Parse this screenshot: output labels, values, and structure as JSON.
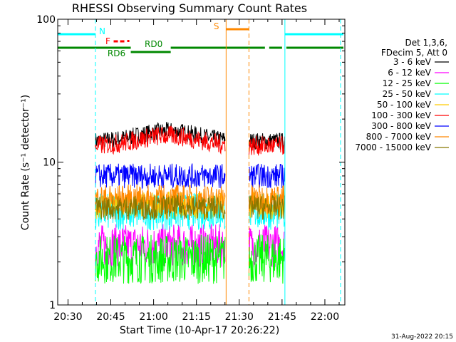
{
  "chart_data": {
    "type": "line",
    "title": "RHESSI Observing Summary Count Rates",
    "xlabel": "Start Time (10-Apr-17 20:26:22)",
    "ylabel": "Count Rate (s⁻¹ detector⁻¹)",
    "x_ticks": [
      "20:30",
      "20:45",
      "21:00",
      "21:15",
      "21:30",
      "21:45",
      "22:00"
    ],
    "x_tick_minutes": [
      30,
      45,
      60,
      75,
      90,
      105,
      120
    ],
    "xlim_minutes": [
      26.4,
      127
    ],
    "y_scale": "log",
    "ylim": [
      1,
      100
    ],
    "y_ticks": [
      "1",
      "10",
      "100"
    ],
    "y_tick_values": [
      1,
      10,
      100
    ],
    "legend_header": [
      "Det 1,3,6,",
      "FDecim 5, Att 0"
    ],
    "data_gap_minutes": [
      [
        85.2,
        93.4
      ]
    ],
    "observation_windows_minutes": [
      [
        39.6,
        85.2
      ],
      [
        93.4,
        106
      ]
    ],
    "series": [
      {
        "name": "3 - 6 keV",
        "color": "#000000",
        "level": 14,
        "noise": 0.14
      },
      {
        "name": "6 - 12 keV",
        "color": "#ff00ff",
        "level": 2.6,
        "noise": 0.35
      },
      {
        "name": "12 - 25 keV",
        "color": "#00ff00",
        "level": 2.1,
        "noise": 0.4
      },
      {
        "name": "25 - 50 keV",
        "color": "#00ffff",
        "level": 4.5,
        "noise": 0.3
      },
      {
        "name": "50 - 100 keV",
        "color": "#ffcc00",
        "level": 5.0,
        "noise": 0.22
      },
      {
        "name": "100 - 300 keV",
        "color": "#ff0000",
        "level": 13,
        "noise": 0.16
      },
      {
        "name": "300 - 800 keV",
        "color": "#0000ff",
        "level": 8,
        "noise": 0.2
      },
      {
        "name": "800 - 7000 keV",
        "color": "#ff8800",
        "level": 5.5,
        "noise": 0.24
      },
      {
        "name": "7000 - 15000 keV",
        "color": "#887700",
        "level": 4.8,
        "noise": 0.2
      }
    ],
    "flags": [
      {
        "label": "N",
        "color": "#00ffff",
        "start": 26.4,
        "end": 39.6
      },
      {
        "label": "",
        "color": "#00ffff",
        "start": 106,
        "end": 126.5
      },
      {
        "label": "F",
        "color": "#ff0000",
        "start": 46,
        "end": 51
      },
      {
        "label": "S",
        "color": "#ff8800",
        "start": 85.4,
        "end": 93.4
      },
      {
        "label": "RD0",
        "color": "#008800",
        "start": 26.4,
        "end": 126.5
      },
      {
        "label": "RD6",
        "color": "#008800",
        "start": 52,
        "end": 66
      }
    ],
    "vlines": [
      {
        "minute": 39.6,
        "color": "#00ffff",
        "style": "dashed"
      },
      {
        "minute": 106,
        "color": "#00ffff",
        "style": "solid"
      },
      {
        "minute": 125.5,
        "color": "#00ffff",
        "style": "dashed"
      },
      {
        "minute": 26.4,
        "color": "#00ffff",
        "style": "solid"
      },
      {
        "minute": 85.4,
        "color": "#ff8800",
        "style": "solid"
      },
      {
        "minute": 93.4,
        "color": "#ff8800",
        "style": "dashed"
      }
    ],
    "grid": false,
    "legend_position": "right"
  },
  "footer": {
    "timestamp": "31-Aug-2022 20:15"
  }
}
